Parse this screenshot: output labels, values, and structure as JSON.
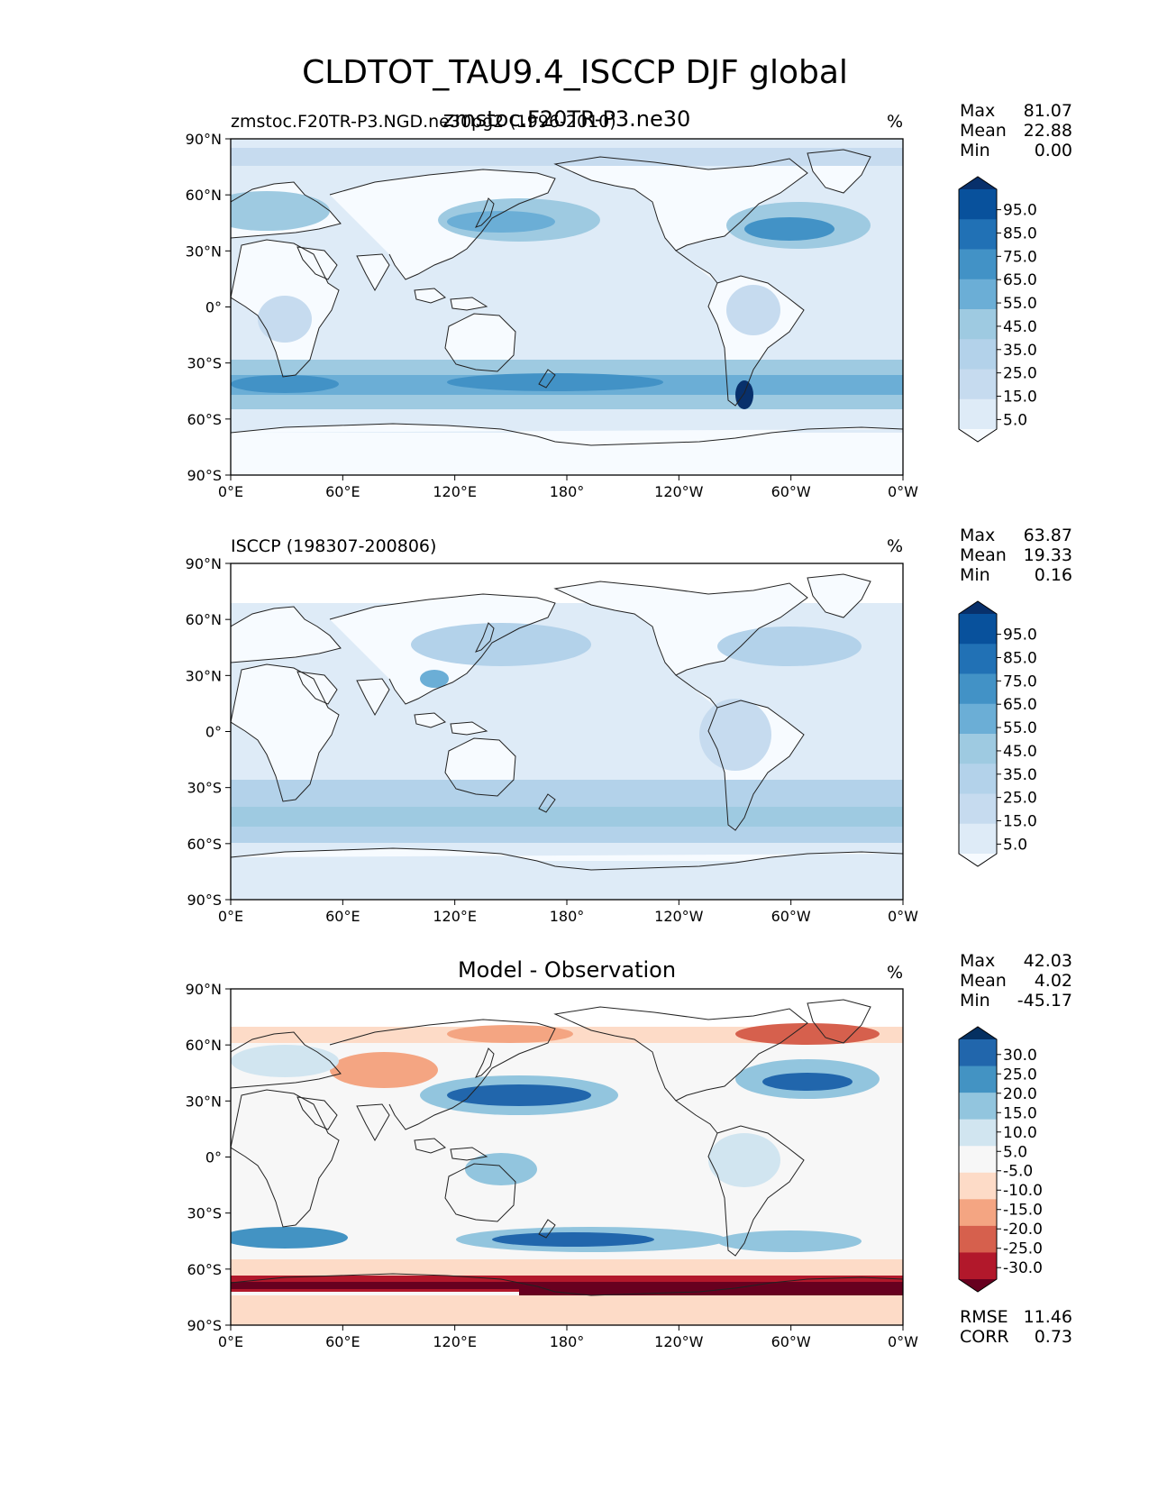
{
  "title": "CLDTOT_TAU9.4_ISCCP DJF global",
  "lon_ticks": [
    "0°E",
    "60°E",
    "120°E",
    "180°",
    "120°W",
    "60°W",
    "0°W"
  ],
  "lat_ticks": [
    "90°N",
    "60°N",
    "30°N",
    "0°",
    "30°S",
    "60°S",
    "90°S"
  ],
  "colors": {
    "blues": [
      "#f7fbff",
      "#deebf7",
      "#c6dbef",
      "#b3d2ea",
      "#9ecae1",
      "#6baed6",
      "#4292c6",
      "#2171b5",
      "#08519c",
      "#08306b"
    ],
    "diff": [
      "#67001f",
      "#b2182b",
      "#d6604d",
      "#f4a582",
      "#fddbc7",
      "#f7f7f7",
      "#d1e5f0",
      "#92c5de",
      "#4393c3",
      "#2166ac",
      "#053061"
    ]
  },
  "panels": [
    {
      "id": "test",
      "left_title": "zmstoc.F20TR-P3.NGD.ne30pg2 (1996-2010)",
      "center_title": "zmstoc.F20TR-P3.ne30",
      "units": "%",
      "stats": [
        {
          "label": "Max",
          "value": "81.07"
        },
        {
          "label": "Mean",
          "value": "22.88"
        },
        {
          "label": "Min",
          "value": "0.00"
        }
      ],
      "colorbar_labels": [
        "95.0",
        "85.0",
        "75.0",
        "65.0",
        "55.0",
        "45.0",
        "35.0",
        "25.0",
        "15.0",
        "5.0"
      ]
    },
    {
      "id": "ref",
      "left_title": "ISCCP (198307-200806)",
      "center_title": "",
      "units": "%",
      "stats": [
        {
          "label": "Max",
          "value": "63.87"
        },
        {
          "label": "Mean",
          "value": "19.33"
        },
        {
          "label": "Min",
          "value": "0.16"
        }
      ],
      "colorbar_labels": [
        "95.0",
        "85.0",
        "75.0",
        "65.0",
        "55.0",
        "45.0",
        "35.0",
        "25.0",
        "15.0",
        "5.0"
      ]
    },
    {
      "id": "diff",
      "left_title": "",
      "center_title": "Model - Observation",
      "units": "%",
      "stats": [
        {
          "label": "Max",
          "value": "42.03"
        },
        {
          "label": "Mean",
          "value": "4.02"
        },
        {
          "label": "Min",
          "value": "-45.17"
        }
      ],
      "colorbar_labels": [
        "30.0",
        "25.0",
        "20.0",
        "15.0",
        "10.0",
        "5.0",
        "-5.0",
        "-10.0",
        "-15.0",
        "-20.0",
        "-25.0",
        "-30.0"
      ],
      "extra_stats": [
        {
          "label": "RMSE",
          "value": "11.46"
        },
        {
          "label": "CORR",
          "value": "0.73"
        }
      ]
    }
  ]
}
